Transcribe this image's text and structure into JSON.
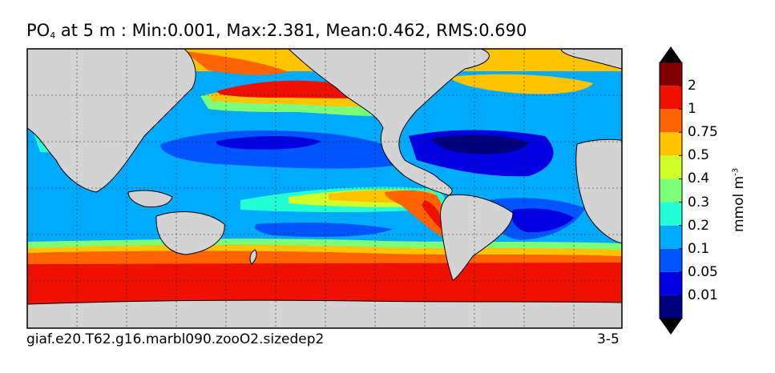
{
  "title": {
    "prefix": "PO",
    "subscript": "4",
    "suffix": "  at 5 m : Min:0.001, Max:2.381, Mean:0.462, RMS:0.690"
  },
  "footer": {
    "case_name": "giaf.e20.T62.g16.marbl090.zooO2.sizedep2",
    "panel_id": "3-5"
  },
  "colorbar": {
    "unit_base": "mmol m",
    "unit_exp": "-3",
    "ticks": [
      "0.01",
      "0.05",
      "0.1",
      "0.2",
      "0.3",
      "0.4",
      "0.5",
      "0.75",
      "1",
      "2"
    ],
    "colors": [
      "#00007f",
      "#0000e0",
      "#0055ff",
      "#00aaff",
      "#24ffd3",
      "#7cff79",
      "#d1ff28",
      "#ffc400",
      "#ff6400",
      "#ee1000",
      "#7f0000"
    ]
  },
  "map": {
    "land_color": "#d3d3d3",
    "field": "PO4",
    "depth": "5 m"
  }
}
